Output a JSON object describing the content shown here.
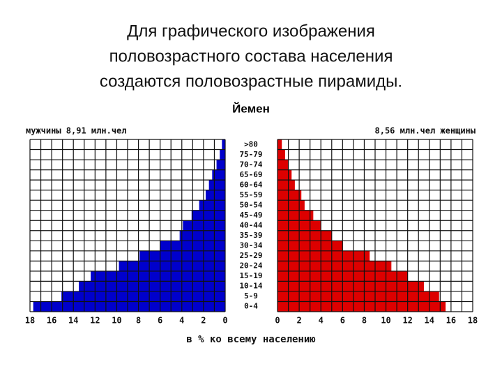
{
  "heading": [
    "Для графического изображения",
    "половозрастного состава населения",
    "создаются половозрастные пирамиды."
  ],
  "chart_data": {
    "type": "pyramid",
    "title": "Йемен",
    "categories": [
      "0-4",
      "5-9",
      "10-14",
      "15-19",
      "20-24",
      "25-29",
      "30-34",
      "35-39",
      "40-44",
      "45-49",
      "50-54",
      "55-59",
      "60-64",
      "65-69",
      "70-74",
      "75-79",
      ">80"
    ],
    "series": [
      {
        "name": "мужчины 8,91 млн.чел",
        "color": "#0000cc",
        "side": "left",
        "values": [
          17.7,
          15.1,
          13.5,
          12.4,
          9.8,
          7.9,
          6.0,
          4.2,
          3.9,
          3.1,
          2.4,
          1.8,
          1.5,
          1.2,
          0.8,
          0.5,
          0.3
        ]
      },
      {
        "name": "8,56 млн.чел женщины",
        "color": "#dd0000",
        "side": "right",
        "values": [
          15.5,
          14.9,
          13.5,
          12.0,
          10.5,
          8.5,
          6.0,
          5.0,
          4.0,
          3.3,
          2.5,
          2.2,
          1.6,
          1.3,
          1.0,
          0.7,
          0.4
        ]
      }
    ],
    "xlim": [
      0,
      18
    ],
    "xticks": [
      0,
      2,
      4,
      6,
      8,
      10,
      12,
      14,
      16,
      18
    ],
    "minor_xticks": [
      1,
      3,
      5,
      7,
      9,
      11,
      13,
      15,
      17
    ],
    "xlabel": "в % ко всему населению",
    "grid": true
  }
}
